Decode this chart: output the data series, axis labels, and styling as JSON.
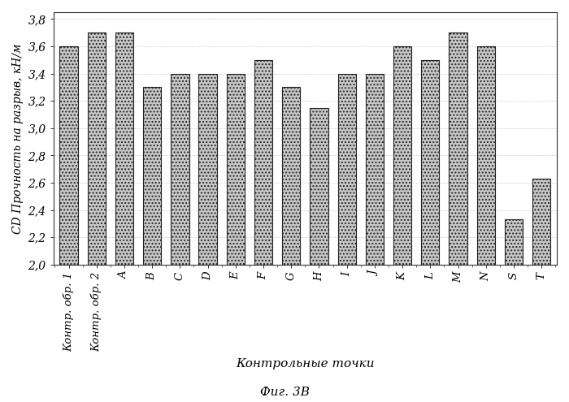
{
  "categories": [
    "Контр. обр. 1",
    "Контр. обр. 2",
    "A",
    "B",
    "C",
    "D",
    "E",
    "F",
    "G",
    "H",
    "I",
    "J",
    "K",
    "L",
    "M",
    "N",
    "S",
    "T"
  ],
  "values": [
    3.6,
    3.7,
    3.7,
    3.3,
    3.4,
    3.4,
    3.4,
    3.5,
    3.3,
    3.15,
    3.4,
    3.4,
    3.6,
    3.5,
    3.7,
    3.6,
    2.33,
    2.63
  ],
  "ylabel": "CD Прочность на разрыв, кН/м",
  "xlabel": "Контрольные точки",
  "caption": "Фиг. 3В",
  "ylim_min": 2.0,
  "ylim_max": 3.85,
  "ytick_vals": [
    2.0,
    2.2,
    2.4,
    2.6,
    2.8,
    3.0,
    3.2,
    3.4,
    3.6,
    3.8
  ],
  "ytick_labels": [
    "2,0",
    "2,2",
    "2,4",
    "2,6",
    "2,8",
    "3,0",
    "3,2",
    "3,4",
    "3,6",
    "3,8"
  ],
  "bar_color": "#c8c8c8",
  "bar_edgecolor": "#222222",
  "bar_hatch": "....",
  "figure_bg": "#ffffff",
  "plot_bg": "#ffffff",
  "bar_width": 0.65,
  "caption_fontsize": 11,
  "ylabel_fontsize": 10,
  "xlabel_fontsize": 11,
  "tick_fontsize": 10,
  "xtick_fontsize": 9.5
}
